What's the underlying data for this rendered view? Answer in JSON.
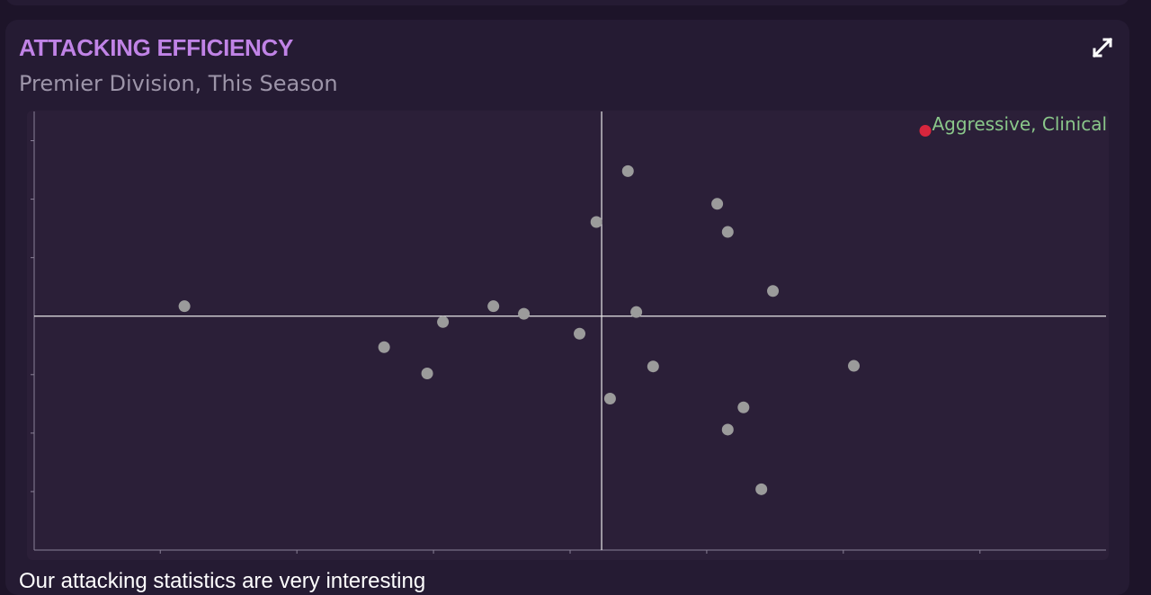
{
  "card": {
    "title": "ATTACKING EFFICIENCY",
    "subtitle": "Premier Division, This Season",
    "expand_icon": "expand-icon",
    "body_text": "Our attacking statistics are very interesting"
  },
  "colors": {
    "title": "#c083e6",
    "point": "#9b9b9b",
    "highlight": "#d7263d",
    "quadrant_label": "#8ac78a",
    "axis": "#e8e8e8"
  },
  "chart_data": {
    "type": "scatter",
    "title": "ATTACKING EFFICIENCY",
    "subtitle": "Premier Division, This Season",
    "xlabel": "",
    "ylabel": "",
    "xlim": [
      -5.4,
      4.8
    ],
    "ylim": [
      -4.0,
      3.5
    ],
    "x_ticks": [
      -4.2,
      -2.9,
      -1.6,
      -0.3,
      1.0,
      2.3,
      3.6
    ],
    "y_ticks": [
      -3.0,
      -2.0,
      -1.0,
      1.0,
      2.0,
      3.0
    ],
    "grid": false,
    "quadrant_label": "Aggressive, Clinical",
    "highlight": {
      "x": 3.08,
      "y": 3.17
    },
    "points": [
      {
        "x": -3.97,
        "y": 0.17
      },
      {
        "x": -2.07,
        "y": -0.53
      },
      {
        "x": -1.66,
        "y": -0.98
      },
      {
        "x": -1.51,
        "y": -0.1
      },
      {
        "x": -1.03,
        "y": 0.17
      },
      {
        "x": -0.74,
        "y": 0.04
      },
      {
        "x": -0.21,
        "y": -0.3
      },
      {
        "x": -0.05,
        "y": 1.61
      },
      {
        "x": 0.08,
        "y": -1.41
      },
      {
        "x": 0.25,
        "y": 2.48
      },
      {
        "x": 0.33,
        "y": 0.07
      },
      {
        "x": 0.49,
        "y": -0.86
      },
      {
        "x": 1.1,
        "y": 1.92
      },
      {
        "x": 1.2,
        "y": 1.44
      },
      {
        "x": 1.2,
        "y": -1.94
      },
      {
        "x": 1.35,
        "y": -1.56
      },
      {
        "x": 1.52,
        "y": -2.96
      },
      {
        "x": 1.63,
        "y": 0.43
      },
      {
        "x": 2.4,
        "y": -0.85
      }
    ]
  }
}
